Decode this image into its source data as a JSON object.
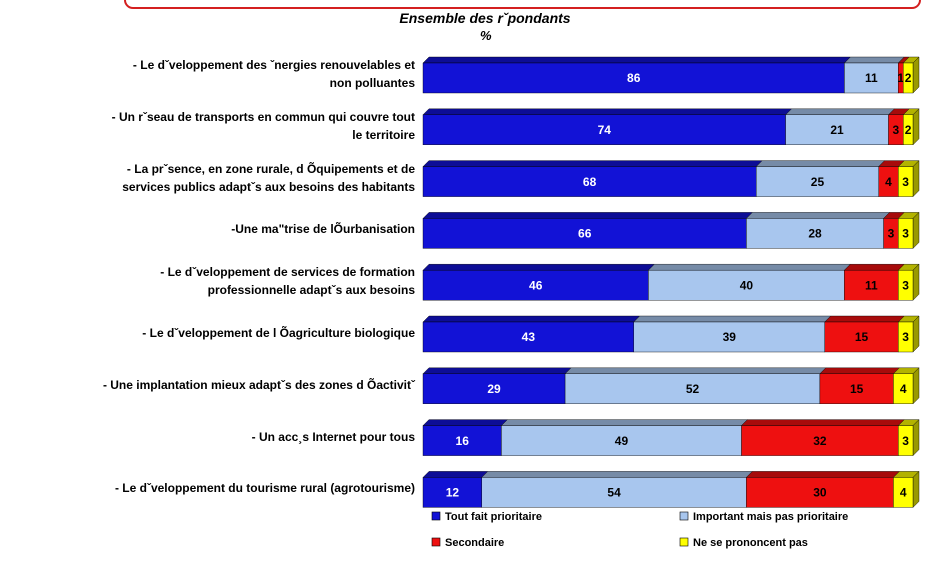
{
  "chart_data": {
    "type": "bar",
    "orientation": "horizontal",
    "stacked": true,
    "title": "Ensemble des rˇpondants",
    "subtitle": "%",
    "categories": [
      "- Le dˇveloppement des ˇnergies renouvelables et\nnon polluantes",
      "- Un rˇseau de transports en commun qui couvre tout\nle territoire",
      "- La prˇsence, en zone rurale, d  Õquipements et de\nservices publics adaptˇs aux besoins des habitants",
      "-Une ma\"trise de lÕurbanisation",
      "- Le dˇveloppement de services de formation\nprofessionnelle adaptˇs aux besoins",
      "- Le dˇveloppement de l  Õagriculture biologique",
      "- Une implantation mieux adaptˇs des zones d  Õactivitˇ",
      "- Un acc¸s    Internet pour tous",
      "- Le dˇveloppement du tourisme rural (agrotourisme)"
    ],
    "series": [
      {
        "name": "Tout    fait prioritaire",
        "color": "#1212d6",
        "values": [
          86,
          74,
          68,
          66,
          46,
          43,
          29,
          16,
          12
        ]
      },
      {
        "name": "Important mais pas prioritaire",
        "color": "#a8c6ee",
        "values": [
          11,
          21,
          25,
          28,
          40,
          39,
          52,
          49,
          54
        ]
      },
      {
        "name": "Secondaire",
        "color": "#ee1010",
        "values": [
          1,
          3,
          4,
          3,
          11,
          15,
          15,
          32,
          30
        ]
      },
      {
        "name": "Ne se prononcent pas",
        "color": "#ffff00",
        "values": [
          2,
          2,
          3,
          3,
          3,
          3,
          4,
          3,
          4
        ]
      }
    ],
    "xlim": [
      0,
      100
    ]
  }
}
